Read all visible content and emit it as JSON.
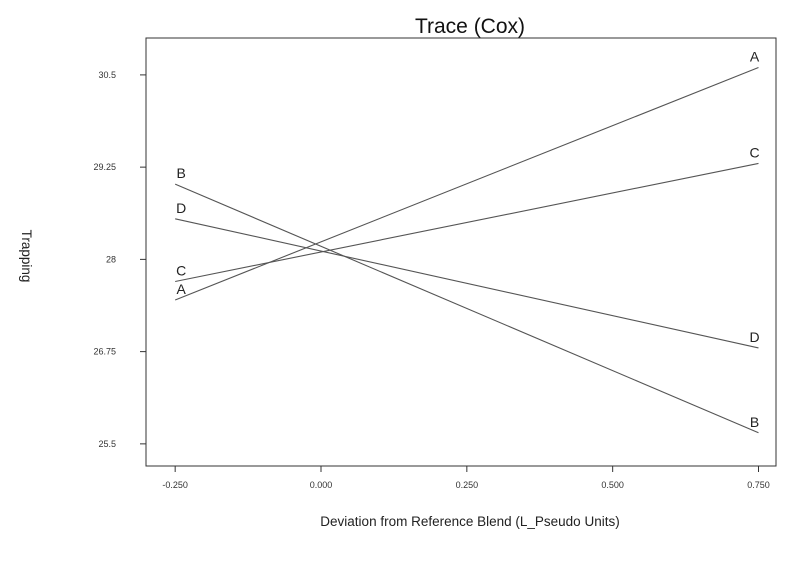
{
  "chart_data": {
    "type": "line",
    "title": "Trace (Cox)",
    "xlabel": "Deviation from Reference Blend (L_Pseudo Units)",
    "ylabel": "Trapping",
    "xlim": [
      -0.3,
      0.78
    ],
    "ylim": [
      25.2,
      31.0
    ],
    "x_ticks": [
      -0.25,
      0.0,
      0.25,
      0.5,
      0.75
    ],
    "x_tick_labels": [
      "-0.250",
      "0.000",
      "0.250",
      "0.500",
      "0.750"
    ],
    "y_ticks": [
      25.5,
      26.75,
      28,
      29.25,
      30.5
    ],
    "y_tick_labels": [
      "25.5",
      "26.75",
      "28",
      "29.25",
      "30.5"
    ],
    "grid": false,
    "legend": "none",
    "line_color": "#555555",
    "series": [
      {
        "name": "A",
        "x": [
          -0.25,
          0.75
        ],
        "y": [
          27.45,
          30.6
        ]
      },
      {
        "name": "B",
        "x": [
          -0.25,
          0.75
        ],
        "y": [
          29.02,
          25.65
        ]
      },
      {
        "name": "C",
        "x": [
          -0.25,
          0.75
        ],
        "y": [
          27.7,
          29.3
        ]
      },
      {
        "name": "D",
        "x": [
          -0.25,
          0.75
        ],
        "y": [
          28.55,
          26.8
        ]
      }
    ]
  }
}
